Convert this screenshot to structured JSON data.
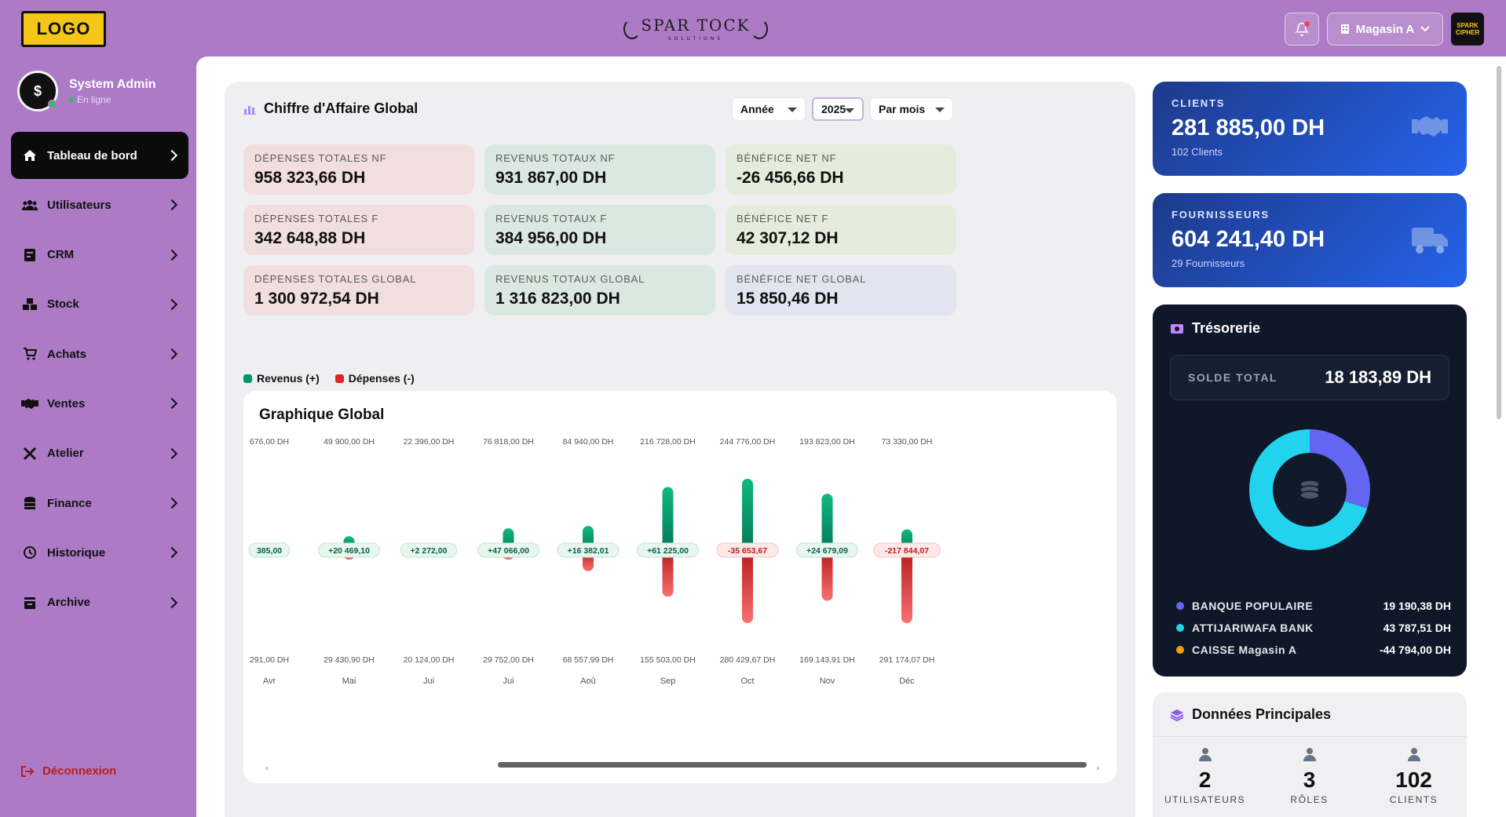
{
  "header": {
    "logo_text": "LOGO",
    "brand_name": "SPAR TOCK",
    "brand_sub": "SOLUTIONS",
    "store_label": "Magasin A",
    "avatar_text": "SPARK CIPHER"
  },
  "sidebar": {
    "user_name": "System Admin",
    "user_status": "En ligne",
    "items": [
      {
        "label": "Tableau de bord",
        "icon": "home-icon"
      },
      {
        "label": "Utilisateurs",
        "icon": "users-icon"
      },
      {
        "label": "CRM",
        "icon": "crm-icon"
      },
      {
        "label": "Stock",
        "icon": "boxes-icon"
      },
      {
        "label": "Achats",
        "icon": "cart-icon"
      },
      {
        "label": "Ventes",
        "icon": "handshake-icon"
      },
      {
        "label": "Atelier",
        "icon": "tools-icon"
      },
      {
        "label": "Finance",
        "icon": "coins-icon"
      },
      {
        "label": "Historique",
        "icon": "history-icon"
      },
      {
        "label": "Archive",
        "icon": "archive-icon"
      }
    ],
    "logout_label": "Déconnexion"
  },
  "panel": {
    "title": "Chiffre d'Affaire Global",
    "period_select": "Année",
    "year_select": "2025",
    "grouping_select": "Par mois",
    "kpis": [
      {
        "label": "DÉPENSES TOTALES NF",
        "value": "958 323,66 DH",
        "color": "#f1dede"
      },
      {
        "label": "REVENUS TOTAUX NF",
        "value": "931 867,00 DH",
        "color": "#dbe8e2"
      },
      {
        "label": "BÉNÉFICE NET NF",
        "value": "-26 456,66 DH",
        "color": "#e6ecdc"
      },
      {
        "label": "DÉPENSES TOTALES F",
        "value": "342 648,88 DH",
        "color": "#f1dede"
      },
      {
        "label": "REVENUS TOTAUX F",
        "value": "384 956,00 DH",
        "color": "#dbe8e2"
      },
      {
        "label": "BÉNÉFICE NET F",
        "value": "42 307,12 DH",
        "color": "#e6ecdc"
      },
      {
        "label": "DÉPENSES TOTALES GLOBAL",
        "value": "1 300 972,54 DH",
        "color": "#f1dede"
      },
      {
        "label": "REVENUS TOTAUX GLOBAL",
        "value": "1 316 823,00 DH",
        "color": "#dbe8e2"
      },
      {
        "label": "BÉNÉFICE NET GLOBAL",
        "value": "15 850,46 DH",
        "color": "#e2e5f0"
      }
    ],
    "legend_revenus": "Revenus (+)",
    "legend_depenses": "Dépenses (-)"
  },
  "chart_data": {
    "type": "bar",
    "title": "Graphique Global",
    "categories": [
      "Avr",
      "Mai",
      "Jui",
      "Jui",
      "Aoû",
      "Sep",
      "Oct",
      "Nov",
      "Déc"
    ],
    "series": [
      {
        "name": "Revenus (+)",
        "color": "#059669",
        "values": [
          676,
          49900,
          22396,
          76818,
          84940,
          216728,
          244776,
          193823,
          73330
        ]
      },
      {
        "name": "Dépenses (-)",
        "color": "#dc2626",
        "values": [
          291,
          29430.9,
          20124,
          29752,
          68557.99,
          155503,
          280429.67,
          169143.91,
          291174.07
        ]
      }
    ],
    "top_labels": [
      "676,00 DH",
      "49 900,00 DH",
      "22 396,00 DH",
      "76 818,00 DH",
      "84 940,00 DH",
      "216 728,00 DH",
      "244 776,00 DH",
      "193 823,00 DH",
      "73 330,00 DH"
    ],
    "bottom_labels": [
      "291,00 DH",
      "29 430,90 DH",
      "20 124,00 DH",
      "29 752,00 DH",
      "68 557,99 DH",
      "155 503,00 DH",
      "280 429,67 DH",
      "169 143,91 DH",
      "291 174,07 DH"
    ],
    "net_labels": [
      "385,00",
      "+20 469,10",
      "+2 272,00",
      "+47 066,00",
      "+16 382,01",
      "+61 225,00",
      "-35 653,67",
      "+24 679,09",
      "-217 844,07"
    ],
    "net_positive": [
      true,
      true,
      true,
      true,
      true,
      true,
      false,
      true,
      false
    ]
  },
  "right": {
    "clients": {
      "label": "CLIENTS",
      "value": "281 885,00 DH",
      "sub": "102 Clients"
    },
    "fournisseurs": {
      "label": "FOURNISSEURS",
      "value": "604 241,40 DH",
      "sub": "29 Fournisseurs"
    },
    "tresorerie": {
      "title": "Trésorerie",
      "solde_label": "SOLDE TOTAL",
      "solde_value": "18 183,89 DH",
      "banks": [
        {
          "name": "BANQUE POPULAIRE",
          "amount": "19 190,38 DH",
          "color": "#6366f1"
        },
        {
          "name": "ATTIJARIWAFA BANK",
          "amount": "43 787,51 DH",
          "color": "#22d3ee"
        },
        {
          "name": "CAISSE Magasin A",
          "amount": "-44 794,00 DH",
          "color": "#f59e0b"
        }
      ],
      "donut_share": [
        0.3,
        0.7
      ]
    },
    "donnees": {
      "title": "Données Principales",
      "items": [
        {
          "num": "2",
          "label": "UTILISATEURS"
        },
        {
          "num": "3",
          "label": "RÔLES"
        },
        {
          "num": "102",
          "label": "CLIENTS"
        }
      ]
    }
  }
}
